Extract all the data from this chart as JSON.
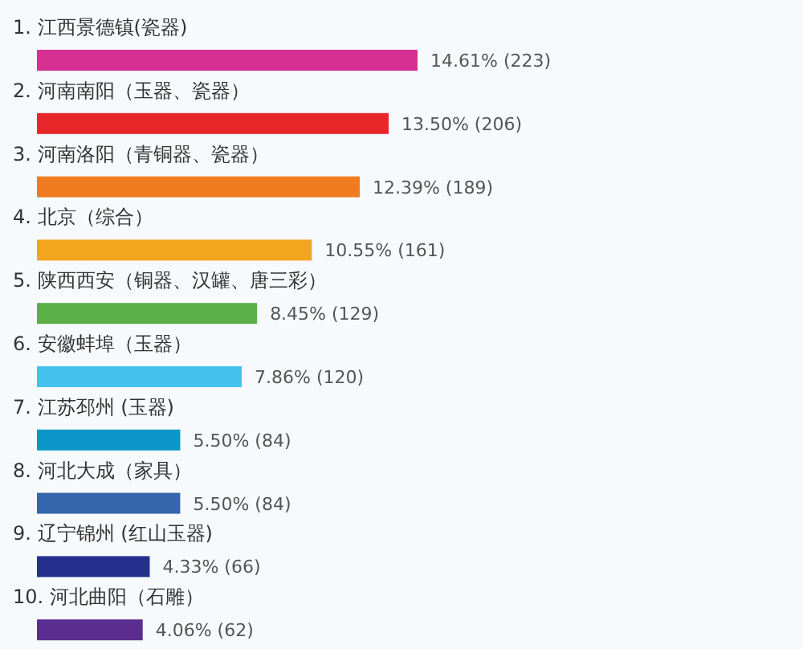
{
  "chart_data": {
    "type": "bar",
    "orientation": "horizontal",
    "categories": [
      "1. 江西景德镇(瓷器)",
      "2. 河南南阳（玉器、瓷器）",
      "3. 河南洛阳（青铜器、瓷器）",
      "4. 北京（综合）",
      "5. 陕西西安（铜器、汉罐、唐三彩）",
      "6. 安徽蚌埠（玉器）",
      "7. 江苏邳州 (玉器)",
      "8. 河北大成（家具）",
      "9. 辽宁锦州 (红山玉器)",
      "10. 河北曲阳（石雕）"
    ],
    "values": [
      14.61,
      13.5,
      12.39,
      10.55,
      8.45,
      7.86,
      5.5,
      5.5,
      4.33,
      4.06
    ],
    "colors": [
      "#d63092",
      "#e8272a",
      "#f07c22",
      "#f2a51f",
      "#5aaf47",
      "#45c2f0",
      "#0a96c6",
      "#3465ad",
      "#23318c",
      "#5b2d90"
    ],
    "value_labels": [
      "14.61% (223)",
      "13.50% (206)",
      "12.39% (189)",
      "10.55% (161)",
      "8.45% (129)",
      "7.86% (120)",
      "5.50% (84)",
      "5.50% (84)",
      "4.33% (66)",
      "4.06% (62)"
    ],
    "data_labels": false
  }
}
